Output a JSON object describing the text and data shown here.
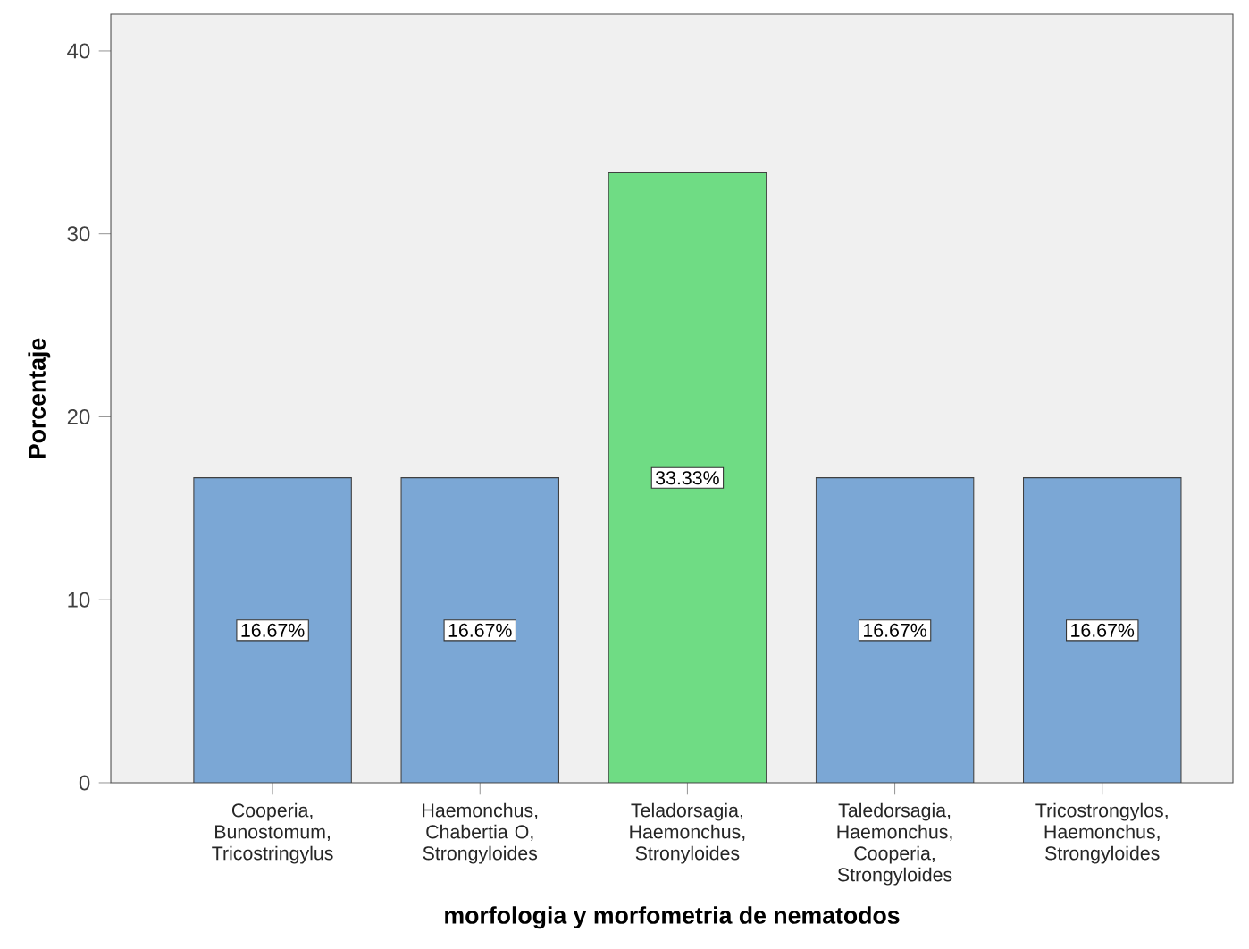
{
  "chart_data": {
    "type": "bar",
    "xlabel": "morfologia y morfometria de nematodos",
    "ylabel": "Porcentaje",
    "categories": [
      "Cooperia, Bunostomum, Tricostringylus",
      "Haemonchus, Chabertia O, Strongyloides",
      "Teladorsagia, Haemonchus, Stronyloides",
      "Taledorsagia, Haemonchus, Cooperia, Strongyloides",
      "Tricostrongylos, Haemonchus, Strongyloides"
    ],
    "values": [
      16.67,
      16.67,
      33.33,
      16.67,
      16.67
    ],
    "value_labels": [
      "16.67%",
      "16.67%",
      "33.33%",
      "16.67%",
      "16.67%"
    ],
    "colors": [
      "#7ba7d5",
      "#7ba7d5",
      "#6fdc84",
      "#7ba7d5",
      "#7ba7d5"
    ],
    "ylim": [
      0,
      42
    ],
    "yticks": [
      0,
      10,
      20,
      30,
      40
    ],
    "grid": false
  }
}
